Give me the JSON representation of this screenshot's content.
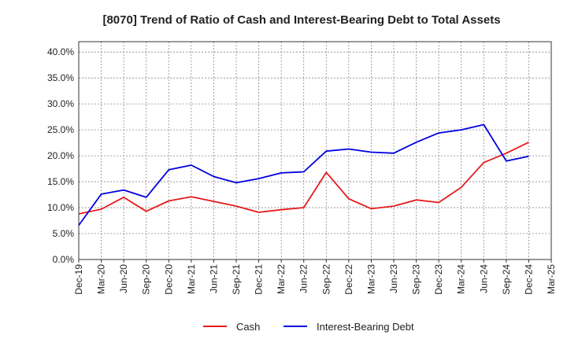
{
  "chart_data": {
    "type": "line",
    "title": "[8070]  Trend of Ratio of Cash and Interest-Bearing Debt to Total Assets",
    "xlabel": "",
    "ylabel": "",
    "categories": [
      "Dec-19",
      "Mar-20",
      "Jun-20",
      "Sep-20",
      "Dec-20",
      "Mar-21",
      "Jun-21",
      "Sep-21",
      "Dec-21",
      "Mar-22",
      "Jun-22",
      "Sep-22",
      "Dec-22",
      "Mar-23",
      "Jun-23",
      "Sep-23",
      "Dec-23",
      "Mar-24",
      "Jun-24",
      "Sep-24",
      "Dec-24",
      "Mar-25"
    ],
    "y_ticks": [
      "0.0%",
      "5.0%",
      "10.0%",
      "15.0%",
      "20.0%",
      "25.0%",
      "30.0%",
      "35.0%",
      "40.0%"
    ],
    "ylim": [
      0,
      42
    ],
    "grid": true,
    "legend_position": "bottom-center",
    "series": [
      {
        "name": "Cash",
        "color": "#e41a1c",
        "values": [
          8.8,
          9.7,
          12.0,
          9.3,
          11.3,
          12.1,
          11.2,
          10.3,
          9.1,
          9.6,
          10.0,
          16.8,
          11.7,
          9.8,
          10.3,
          11.5,
          11.0,
          13.9,
          18.7,
          20.5,
          22.6,
          null
        ]
      },
      {
        "name": "Interest-Bearing Debt",
        "color": "#0000e0",
        "values": [
          6.6,
          12.6,
          13.4,
          12.0,
          17.3,
          18.2,
          16.0,
          14.8,
          15.6,
          16.7,
          16.9,
          20.9,
          21.3,
          20.7,
          20.5,
          22.6,
          24.4,
          25.0,
          26.0,
          19.0,
          19.9,
          null
        ]
      }
    ]
  }
}
